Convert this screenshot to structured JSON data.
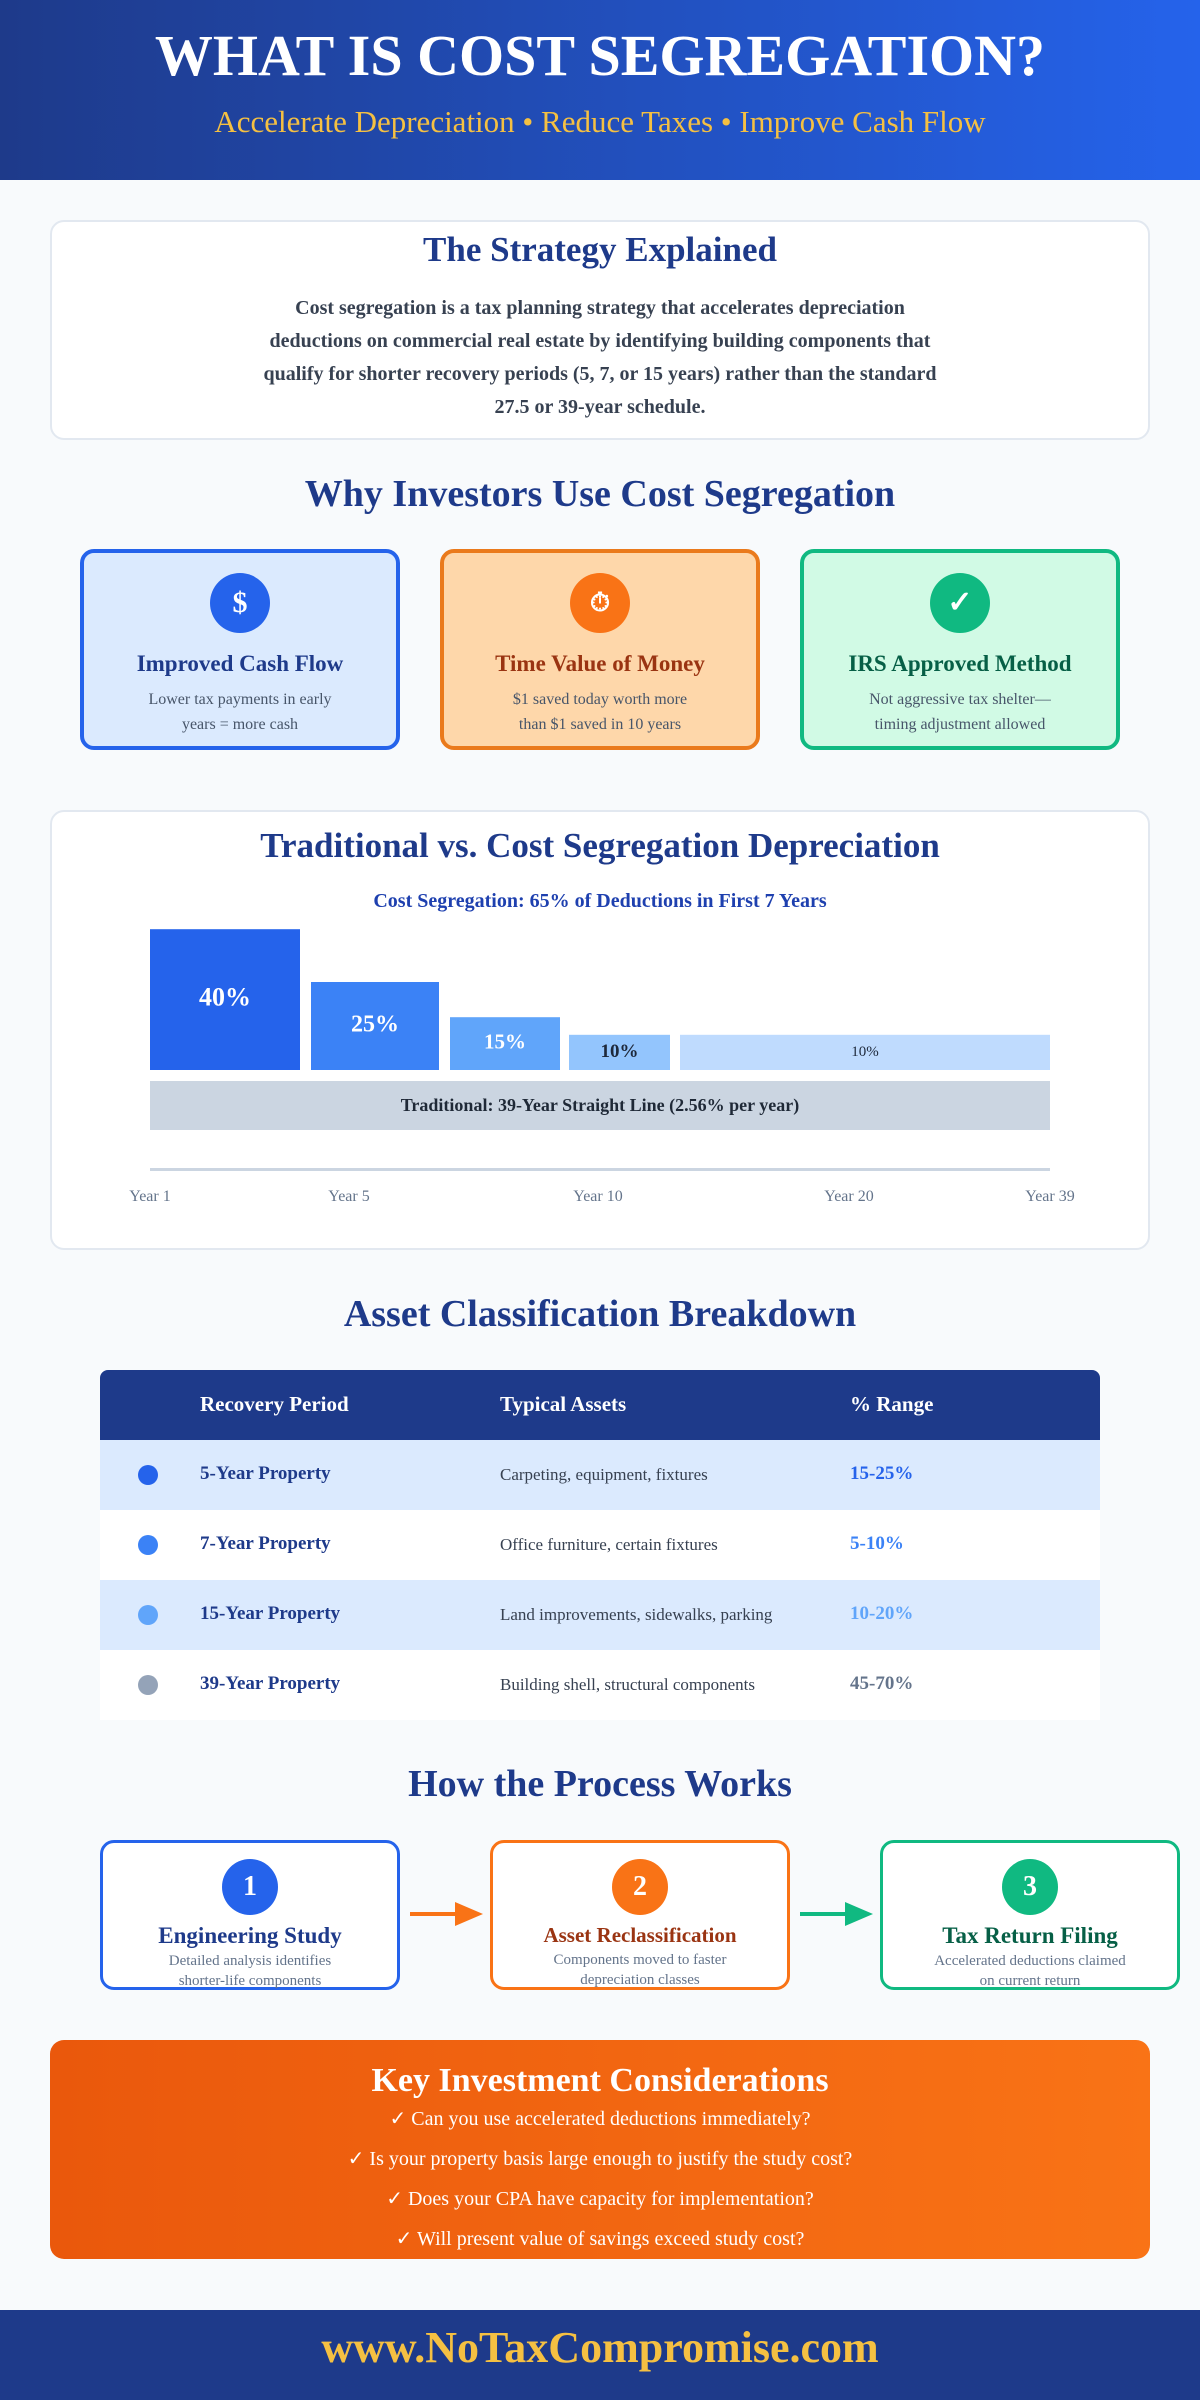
{
  "header": {
    "title": "WHAT IS COST SEGREGATION?",
    "subtitle": "Accelerate Depreciation • Reduce Taxes • Improve Cash Flow"
  },
  "strategy": {
    "title": "The Strategy Explained",
    "body": "Cost segregation is a tax planning strategy that accelerates depreciation deductions on commercial real estate by identifying building components that qualify for shorter recovery periods (5, 7, or 15 years) rather than the standard 27.5 or 39-year schedule."
  },
  "why": {
    "title": "Why Investors Use Cost Segregation",
    "cards": [
      {
        "icon": "$",
        "title": "Improved Cash Flow",
        "text": "Lower tax payments in early years = more cash"
      },
      {
        "icon": "⏱",
        "title": "Time Value of Money",
        "text": "$1 saved today worth more than $1 saved in 10 years"
      },
      {
        "icon": "✓",
        "title": "IRS Approved Method",
        "text": "Not aggressive tax shelter—timing adjustment allowed"
      }
    ]
  },
  "depreciation": {
    "title": "Traditional vs. Cost Segregation Depreciation",
    "subtitle": "Cost Segregation: 65% of Deductions in First 7 Years",
    "bars": [
      {
        "value": 40,
        "label": "40%"
      },
      {
        "value": 25,
        "label": "25%"
      },
      {
        "value": 15,
        "label": "15%"
      },
      {
        "value": 10,
        "label": "10%"
      },
      {
        "value": 10,
        "label": "10%"
      }
    ],
    "traditional": "Traditional: 39-Year Straight Line (2.56% per year)",
    "years": [
      "Year 1",
      "Year 5",
      "Year 10",
      "Year 20",
      "Year 39"
    ]
  },
  "assets": {
    "title": "Asset Classification Breakdown",
    "header": [
      "Recovery Period",
      "Typical Assets",
      "% Range"
    ],
    "rows": [
      [
        "5-Year Property",
        "Carpeting, equipment, fixtures",
        "15-25%"
      ],
      [
        "7-Year Property",
        "Office furniture, certain fixtures",
        "5-10%"
      ],
      [
        "15-Year Property",
        "Land improvements, sidewalks, parking",
        "10-20%"
      ],
      [
        "39-Year Property",
        "Building shell, structural components",
        "45-70%"
      ]
    ]
  },
  "process": {
    "title": "How the Process Works",
    "steps": [
      {
        "number": "1",
        "title": "Engineering Study",
        "text": "Detailed analysis identifies shorter-life components"
      },
      {
        "number": "2",
        "title": "Asset Reclassification",
        "text": "Components moved to faster depreciation classes"
      },
      {
        "number": "3",
        "title": "Tax Return Filing",
        "text": "Accelerated deductions claimed on current return"
      }
    ]
  },
  "considerations": {
    "title": "Key Investment Considerations",
    "items": [
      "✓ Can you use accelerated deductions immediately?",
      "✓ Is your property basis large enough to justify the study cost?",
      "✓ Does your CPA have capacity for implementation?",
      "✓ Will present value of savings exceed study cost?"
    ]
  },
  "footer": {
    "url": "www.NoTaxCompromise.com"
  }
}
